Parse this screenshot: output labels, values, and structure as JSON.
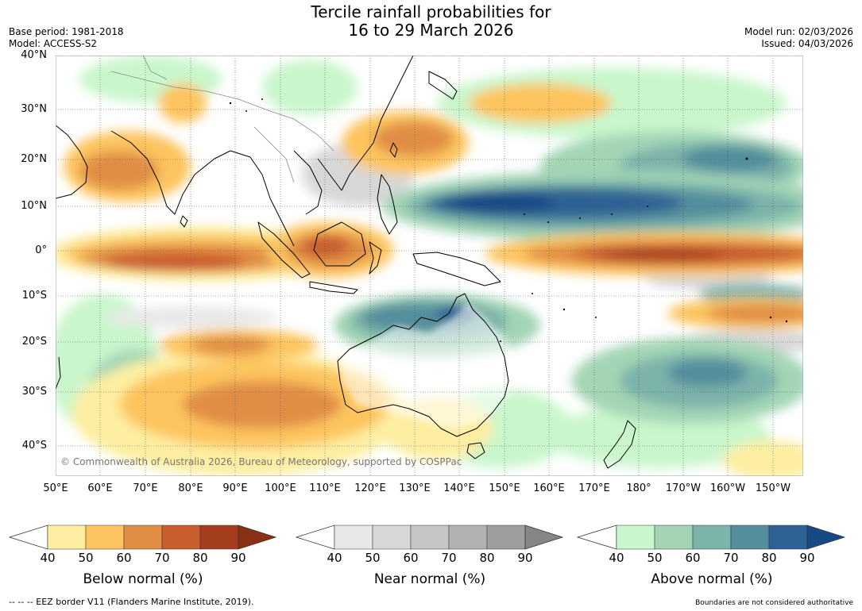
{
  "title_line1": "Tercile rainfall probabilities for",
  "title_line2": "16 to 29 March 2026",
  "base_period": "Base period: 1981-2018",
  "model": "Model: ACCESS-S2",
  "model_run": "Model run: 02/03/2026",
  "issued": "Issued: 04/03/2026",
  "lat_labels": [
    "40°N",
    "30°N",
    "20°N",
    "10°N",
    "0°",
    "10°S",
    "20°S",
    "30°S",
    "40°S"
  ],
  "lon_labels": [
    "50°E",
    "60°E",
    "70°E",
    "80°E",
    "90°E",
    "100°E",
    "110°E",
    "120°E",
    "130°E",
    "140°E",
    "150°E",
    "160°E",
    "170°E",
    "180°",
    "170°W",
    "160°W",
    "150°W"
  ],
  "copyright": "© Commonwealth of Australia 2026, Bureau of Meteorology, supported by COSPPac",
  "colorbars": [
    {
      "label": "Below normal (%)",
      "ticks": [
        "40",
        "50",
        "60",
        "70",
        "80",
        "90"
      ],
      "colors": [
        "#fdeea1",
        "#fdc45f",
        "#e08e45",
        "#c95d2e",
        "#a53e1f"
      ],
      "extend": "#8a3015"
    },
    {
      "label": "Near normal (%)",
      "ticks": [
        "40",
        "50",
        "60",
        "70",
        "80",
        "90"
      ],
      "colors": [
        "#e8e8e8",
        "#d7d7d7",
        "#c5c5c5",
        "#b1b1b1",
        "#9e9e9e"
      ],
      "extend": "#858585"
    },
    {
      "label": "Above normal (%)",
      "ticks": [
        "40",
        "50",
        "60",
        "70",
        "80",
        "90"
      ],
      "colors": [
        "#c9f6cc",
        "#a3d5b5",
        "#7cb3aa",
        "#558e9c",
        "#2e6294"
      ],
      "extend": "#174a84"
    }
  ],
  "footer_left": "--  --  -- EEZ border V11 (Flanders Marine Institute, 2019).",
  "footer_right": "Boundaries are not considered authoritative"
}
